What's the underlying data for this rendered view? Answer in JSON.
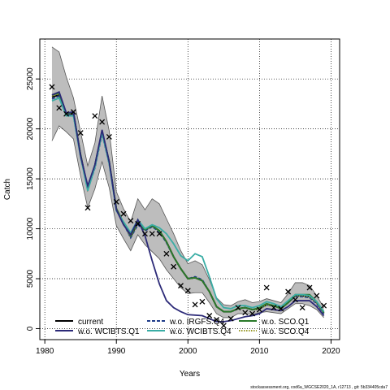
{
  "chart_data": {
    "type": "line",
    "title": "",
    "xlabel": "Years",
    "ylabel": "Catch",
    "xlim": [
      1979.3,
      2021.2
    ],
    "ylim": [
      -1100,
      29000
    ],
    "xticks": [
      1980,
      1990,
      2000,
      2010,
      2020
    ],
    "yticks": [
      0,
      5000,
      10000,
      15000,
      20000,
      25000
    ],
    "grid": true,
    "legend_position": "bottom-left",
    "x": [
      1981,
      1982,
      1983,
      1984,
      1985,
      1986,
      1987,
      1988,
      1989,
      1990,
      1991,
      1992,
      1993,
      1994,
      1995,
      1996,
      1997,
      1998,
      1999,
      2000,
      2001,
      2002,
      2003,
      2004,
      2005,
      2006,
      2007,
      2008,
      2009,
      2010,
      2011,
      2012,
      2013,
      2014,
      2015,
      2016,
      2017,
      2018,
      2019
    ],
    "band": {
      "upper": [
        28200,
        27700,
        25200,
        23100,
        19700,
        16300,
        18600,
        23300,
        19800,
        13700,
        12000,
        10700,
        13000,
        11900,
        13000,
        12500,
        11000,
        9500,
        7800,
        6500,
        6800,
        6400,
        4900,
        3100,
        2400,
        2300,
        2700,
        2900,
        2600,
        2700,
        3000,
        2800,
        2600,
        3500,
        4600,
        4600,
        4300,
        3300,
        2100
      ],
      "lower": [
        18800,
        20300,
        19700,
        19000,
        15300,
        12100,
        14000,
        16700,
        14100,
        10300,
        9000,
        7800,
        9400,
        8400,
        7700,
        7000,
        5900,
        5000,
        4100,
        3500,
        3600,
        3600,
        2600,
        1500,
        1100,
        1100,
        1500,
        1500,
        1400,
        1600,
        1700,
        1600,
        1500,
        2000,
        2500,
        2500,
        2300,
        1900,
        1100
      ]
    },
    "series": [
      {
        "name": "current",
        "color": "#000000",
        "dash": "solid",
        "values": [
          23200,
          23400,
          21500,
          21500,
          17400,
          14000,
          16300,
          19700,
          16700,
          12000,
          10600,
          9200,
          10600,
          9900,
          10300,
          9800,
          8700,
          7200,
          6000,
          5000,
          5100,
          4800,
          3700,
          2200,
          1700,
          1700,
          2000,
          2100,
          1900,
          2000,
          2400,
          2300,
          2000,
          2600,
          3300,
          3300,
          3200,
          2600,
          1600
        ]
      },
      {
        "name": "w.o. WCIBTS.Q1",
        "color": "#2c2a78",
        "dash": "solid",
        "values": [
          23400,
          23700,
          21600,
          21700,
          17300,
          14300,
          16400,
          19900,
          16700,
          11900,
          10400,
          9400,
          10900,
          9300,
          6800,
          4500,
          2800,
          2100,
          1700,
          1400,
          1350,
          1300,
          1000,
          700,
          700,
          800,
          1000,
          1200,
          1300,
          1500,
          2000,
          1900,
          1800,
          2200,
          2800,
          2800,
          2800,
          2200,
          1300
        ]
      },
      {
        "name": "w.o. IRGFS.Q4",
        "color": "#1f3d8a",
        "dash": "dashed",
        "values": [
          23000,
          23300,
          21400,
          21400,
          17200,
          13900,
          16100,
          19500,
          16500,
          11900,
          10500,
          9100,
          10400,
          9800,
          10200,
          9700,
          8600,
          7200,
          6000,
          5000,
          5200,
          4900,
          3700,
          2200,
          1700,
          1700,
          2000,
          2100,
          1900,
          2000,
          2400,
          2300,
          2000,
          2600,
          3200,
          3200,
          3100,
          2500,
          1500
        ]
      },
      {
        "name": "w.o. WCIBTS.Q4",
        "color": "#3aada5",
        "dash": "solid",
        "values": [
          22800,
          23100,
          21300,
          21300,
          17200,
          13800,
          16200,
          19600,
          16500,
          11800,
          10700,
          9600,
          10900,
          10000,
          10400,
          10100,
          9500,
          8500,
          7300,
          6800,
          7500,
          7200,
          5200,
          3000,
          2100,
          2000,
          2300,
          2300,
          2100,
          2300,
          2700,
          2500,
          2200,
          2800,
          3400,
          3400,
          3300,
          2700,
          1700
        ]
      },
      {
        "name": "w.o. SCO.Q1",
        "color": "#2a7a2a",
        "dash": "solid",
        "values": [
          23400,
          23600,
          21500,
          21700,
          17400,
          14000,
          16400,
          19800,
          16700,
          12000,
          10600,
          9300,
          10700,
          9900,
          10300,
          9800,
          8700,
          7200,
          6000,
          5000,
          5100,
          4800,
          3700,
          2200,
          1700,
          1700,
          2000,
          2100,
          1900,
          2100,
          2500,
          2300,
          2000,
          2600,
          3400,
          3400,
          3400,
          2700,
          1600
        ]
      },
      {
        "name": "w.o. SCO.Q4",
        "color": "#9a9a2a",
        "dash": "dotted",
        "values": [
          23300,
          23500,
          21500,
          21600,
          17300,
          14000,
          16300,
          19700,
          16600,
          12000,
          10600,
          9200,
          10600,
          9900,
          10300,
          9800,
          8700,
          7200,
          6000,
          5000,
          5100,
          4800,
          3700,
          2200,
          1700,
          1700,
          2000,
          2100,
          1900,
          2000,
          2400,
          2300,
          2000,
          2600,
          3300,
          3300,
          3200,
          2600,
          1600
        ]
      }
    ],
    "observed": {
      "marker": "x",
      "x": [
        1981,
        1982,
        1983,
        1984,
        1985,
        1986,
        1987,
        1988,
        1989,
        1990,
        1991,
        1992,
        1993,
        1994,
        1995,
        1996,
        1997,
        1998,
        1999,
        2000,
        2001,
        2002,
        2003,
        2004,
        2005,
        2006,
        2007,
        2008,
        2009,
        2010,
        2011,
        2012,
        2013,
        2014,
        2015,
        2016,
        2017,
        2018,
        2019
      ],
      "y": [
        24200,
        22100,
        21500,
        21700,
        19600,
        12100,
        21300,
        20700,
        19200,
        12700,
        11500,
        10800,
        10500,
        9500,
        9500,
        9500,
        7500,
        6200,
        4300,
        3800,
        2400,
        2700,
        1300,
        900,
        300,
        1000,
        2100,
        1600,
        1500,
        1900,
        4100,
        2100,
        2000,
        3700,
        2900,
        2100,
        4100,
        3300,
        2300
      ]
    },
    "band_color": "#bdbdbd",
    "band_edge_color": "#555555",
    "footer": "stockassessment.org, cod6a_WGCSE2020_1A, r12713 , git: 5b334405cda7"
  }
}
